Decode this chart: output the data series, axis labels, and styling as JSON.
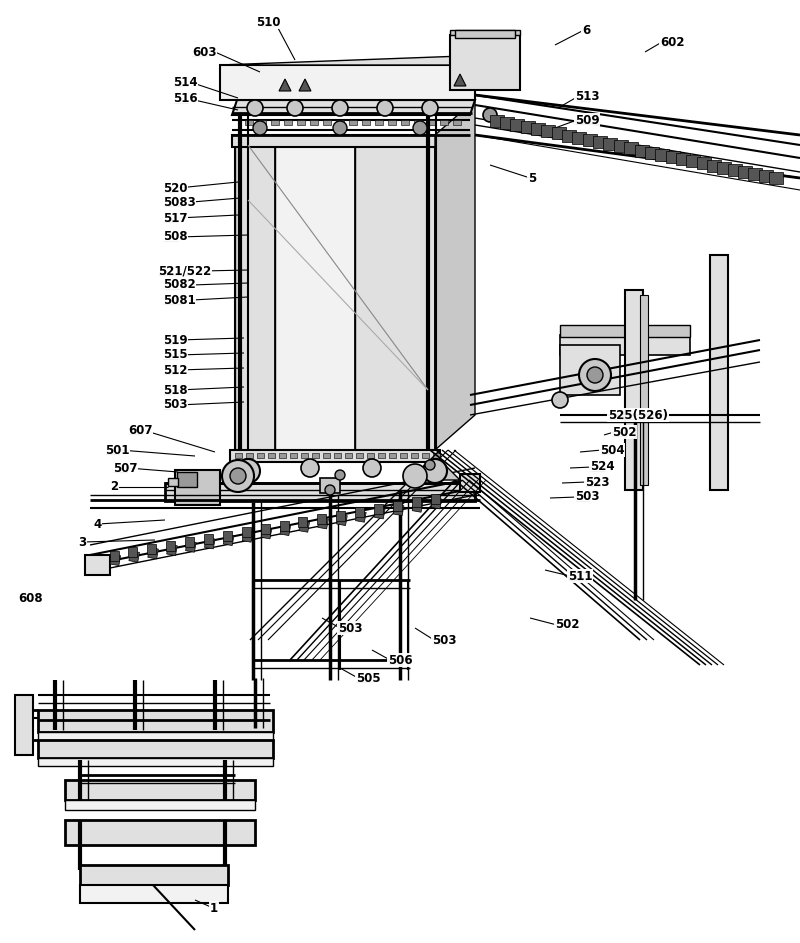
{
  "bg_color": "#ffffff",
  "figsize": [
    8.0,
    9.43
  ],
  "dpi": 100,
  "lc": "#000000"
}
